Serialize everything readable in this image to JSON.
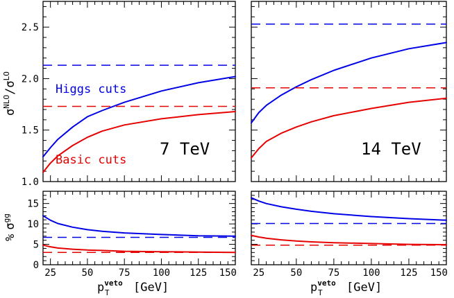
{
  "chart_data": [
    {
      "panel": "top-left",
      "type": "line",
      "ylabel": "σNLO / σLO",
      "xlabel": "",
      "xlim": [
        20,
        150
      ],
      "ylim": [
        1.0,
        2.75
      ],
      "yticks": [
        "1.0",
        "1.5",
        "2.0",
        "2.5"
      ],
      "xticks": [
        "",
        "",
        "",
        "",
        "",
        ""
      ],
      "annotations": [
        "7 TeV",
        "Higgs cuts",
        "Basic cuts"
      ],
      "series": [
        {
          "name": "Higgs cuts",
          "color": "#0000e6",
          "style": "solid",
          "x": [
            20,
            25,
            30,
            40,
            50,
            60,
            75,
            100,
            125,
            150
          ],
          "y": [
            1.24,
            1.33,
            1.41,
            1.53,
            1.63,
            1.69,
            1.77,
            1.88,
            1.96,
            2.02
          ]
        },
        {
          "name": "",
          "color": "#0000e6",
          "style": "dashed",
          "x": [
            20,
            150
          ],
          "y": [
            2.13,
            2.13
          ]
        },
        {
          "name": "Basic cuts",
          "color": "#e60000",
          "style": "solid",
          "x": [
            20,
            25,
            30,
            40,
            50,
            60,
            75,
            100,
            125,
            150
          ],
          "y": [
            1.09,
            1.18,
            1.25,
            1.35,
            1.43,
            1.49,
            1.55,
            1.61,
            1.65,
            1.68
          ]
        },
        {
          "name": "",
          "color": "#e60000",
          "style": "dashed",
          "x": [
            20,
            150
          ],
          "y": [
            1.73,
            1.73
          ]
        }
      ]
    },
    {
      "panel": "top-right",
      "type": "line",
      "ylabel": "",
      "xlabel": "",
      "xlim": [
        20,
        150
      ],
      "ylim": [
        1.0,
        2.75
      ],
      "yticks": [
        "",
        "",
        "",
        ""
      ],
      "xticks": [
        "",
        "",
        "",
        "",
        "",
        ""
      ],
      "annotations": [
        "14 TeV"
      ],
      "series": [
        {
          "name": "",
          "color": "#0000e6",
          "style": "solid",
          "x": [
            20,
            25,
            30,
            40,
            50,
            60,
            75,
            100,
            125,
            150
          ],
          "y": [
            1.57,
            1.67,
            1.74,
            1.84,
            1.92,
            1.99,
            2.08,
            2.2,
            2.29,
            2.35
          ]
        },
        {
          "name": "",
          "color": "#0000e6",
          "style": "dashed",
          "x": [
            20,
            150
          ],
          "y": [
            2.53,
            2.53
          ]
        },
        {
          "name": "",
          "color": "#e60000",
          "style": "solid",
          "x": [
            20,
            25,
            30,
            40,
            50,
            60,
            75,
            100,
            125,
            150
          ],
          "y": [
            1.23,
            1.32,
            1.39,
            1.47,
            1.53,
            1.58,
            1.64,
            1.71,
            1.77,
            1.81
          ]
        },
        {
          "name": "",
          "color": "#e60000",
          "style": "dashed",
          "x": [
            20,
            150
          ],
          "y": [
            1.91,
            1.91
          ]
        }
      ]
    },
    {
      "panel": "bottom-left",
      "type": "line",
      "ylabel": "% σgg",
      "xlabel": "pTveto [GeV]",
      "xlim": [
        20,
        150
      ],
      "ylim": [
        0,
        18
      ],
      "yticks": [
        "0",
        "5",
        "10",
        "15"
      ],
      "xticks": [
        "25",
        "50",
        "75",
        "100",
        "125",
        "150"
      ],
      "annotations": [],
      "series": [
        {
          "name": "",
          "color": "#0000e6",
          "style": "solid",
          "x": [
            20,
            25,
            30,
            40,
            50,
            60,
            75,
            100,
            125,
            150
          ],
          "y": [
            12.0,
            10.9,
            10.1,
            9.2,
            8.6,
            8.2,
            7.8,
            7.4,
            7.1,
            7.0
          ]
        },
        {
          "name": "",
          "color": "#0000e6",
          "style": "dashed",
          "x": [
            20,
            150
          ],
          "y": [
            6.7,
            6.7
          ]
        },
        {
          "name": "",
          "color": "#e60000",
          "style": "solid",
          "x": [
            20,
            25,
            30,
            40,
            50,
            60,
            75,
            100,
            125,
            150
          ],
          "y": [
            4.8,
            4.4,
            4.1,
            3.8,
            3.6,
            3.5,
            3.3,
            3.2,
            3.1,
            3.0
          ]
        },
        {
          "name": "",
          "color": "#e60000",
          "style": "dashed",
          "x": [
            20,
            150
          ],
          "y": [
            3.0,
            3.0
          ]
        }
      ]
    },
    {
      "panel": "bottom-right",
      "type": "line",
      "ylabel": "",
      "xlabel": "pTveto [GeV]",
      "xlim": [
        20,
        150
      ],
      "ylim": [
        0,
        18
      ],
      "yticks": [
        "",
        "",
        "",
        ""
      ],
      "xticks": [
        "25",
        "50",
        "75",
        "100",
        "125",
        "150"
      ],
      "annotations": [],
      "series": [
        {
          "name": "",
          "color": "#0000e6",
          "style": "solid",
          "x": [
            20,
            25,
            30,
            40,
            50,
            60,
            75,
            100,
            125,
            150
          ],
          "y": [
            16.4,
            15.6,
            15.0,
            14.2,
            13.6,
            13.1,
            12.5,
            11.8,
            11.3,
            10.9
          ]
        },
        {
          "name": "",
          "color": "#0000e6",
          "style": "dashed",
          "x": [
            20,
            150
          ],
          "y": [
            10.1,
            10.1
          ]
        },
        {
          "name": "",
          "color": "#e60000",
          "style": "solid",
          "x": [
            20,
            25,
            30,
            40,
            50,
            60,
            75,
            100,
            125,
            150
          ],
          "y": [
            7.2,
            6.8,
            6.5,
            6.1,
            5.8,
            5.6,
            5.4,
            5.2,
            5.0,
            4.9
          ]
        },
        {
          "name": "",
          "color": "#e60000",
          "style": "dashed",
          "x": [
            20,
            150
          ],
          "y": [
            4.8,
            4.8
          ]
        }
      ]
    }
  ],
  "axis_text": {
    "top_ylabel_main": "σ",
    "top_ylabel_sup1": "NLO",
    "top_ylabel_slash": "/",
    "top_ylabel_sup2": "LO",
    "bottom_ylabel_pct": "%",
    "bottom_ylabel_sigma": "σ",
    "bottom_ylabel_sup": "gg",
    "xlabel_p": "p",
    "xlabel_sub": "T",
    "xlabel_sup": "veto",
    "xlabel_unit": "[GeV]"
  }
}
